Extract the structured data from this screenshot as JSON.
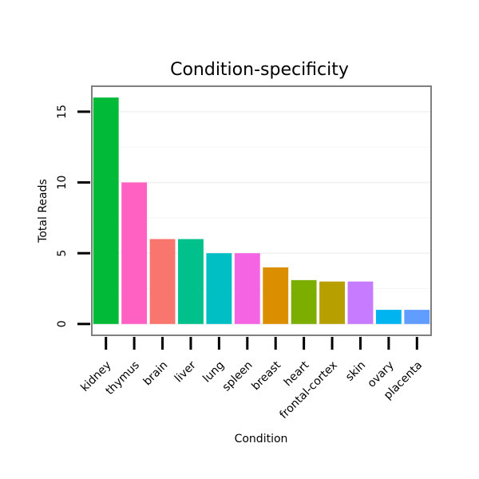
{
  "chart_data": {
    "type": "bar",
    "title": "Condition-specificity",
    "xlabel": "Condition",
    "ylabel": "Total Reads",
    "categories": [
      "kidney",
      "thymus",
      "brain",
      "liver",
      "lung",
      "spleen",
      "breast",
      "heart",
      "frontal-cortex",
      "skin",
      "ovary",
      "placenta"
    ],
    "values": [
      16,
      10,
      6,
      6,
      5,
      5,
      4,
      3.1,
      3,
      3,
      1,
      1
    ],
    "colors": [
      "#00BA38",
      "#FF61C3",
      "#F8766D",
      "#00C08B",
      "#00BFC4",
      "#F564E3",
      "#DB8E00",
      "#7CAE00",
      "#B79F00",
      "#C77CFF",
      "#00B4F0",
      "#619CFF"
    ],
    "yticks": [
      0,
      5,
      10,
      15
    ],
    "ylim": [
      -0.8,
      16.8
    ],
    "grid": true,
    "legend": "none"
  }
}
